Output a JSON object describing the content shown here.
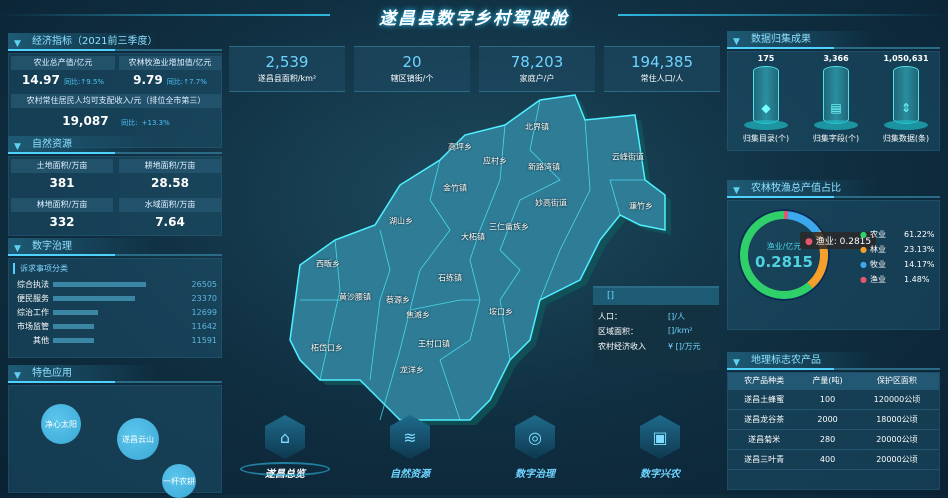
{
  "header": {
    "title": "遂昌县数字乡村驾驶舱"
  },
  "stats": [
    {
      "value": "2,539",
      "label": "遂昌县面积/km²"
    },
    {
      "value": "20",
      "label": "辖区镇街/个"
    },
    {
      "value": "78,203",
      "label": "家庭户/户"
    },
    {
      "value": "194,385",
      "label": "常住人口/人"
    }
  ],
  "economy": {
    "title": "经济指标（2021前三季度）",
    "agri": {
      "label": "农业总产值/亿元",
      "value": "14.97",
      "yoy_label": "同比:",
      "yoy": "↑9.5%"
    },
    "added": {
      "label": "农林牧渔业增加值/亿元",
      "value": "9.79",
      "yoy_label": "同比:",
      "yoy": "↑7.7%"
    },
    "income": {
      "label": "农村常住居民人均可支配收入/元（排位全市第三）",
      "value": "19,087",
      "yoy_label": "同比:",
      "yoy": "+13.3%"
    }
  },
  "nature": {
    "title": "自然资源",
    "items": [
      {
        "label": "土地面积/万亩",
        "value": "381"
      },
      {
        "label": "耕地面积/万亩",
        "value": "28.58"
      },
      {
        "label": "林地面积/万亩",
        "value": "332"
      },
      {
        "label": "水域面积/万亩",
        "value": "7.64"
      }
    ]
  },
  "governance": {
    "title": "数字治理",
    "subtitle": "诉求事项分类",
    "items": [
      {
        "label": "综合执法",
        "value": 26505
      },
      {
        "label": "便民服务",
        "value": 23370
      },
      {
        "label": "综治工作",
        "value": 12699
      },
      {
        "label": "市场监管",
        "value": 11642
      },
      {
        "label": "其他",
        "value": 11591
      }
    ]
  },
  "apps": {
    "title": "特色应用",
    "items": [
      "净心太阳",
      "遂昌云山",
      "一杆农耕"
    ]
  },
  "collection": {
    "title": "数据归集成果",
    "items": [
      {
        "value": "175",
        "label": "归集目录(个)",
        "icon": "layers-icon"
      },
      {
        "value": "3,366",
        "label": "归集字段(个)",
        "icon": "folder-icon"
      },
      {
        "value": "1,050,631",
        "label": "归集数据(条)",
        "icon": "sliders-icon"
      }
    ]
  },
  "share": {
    "title": "农林牧渔总产值占比",
    "center_label": "渔业/亿元",
    "center_value": "0.2815",
    "tooltip": "渔业: 0.2815",
    "items": [
      {
        "name": "农业",
        "pct": "61.22%",
        "value": 61.22,
        "color": "#2fd06a"
      },
      {
        "name": "林业",
        "pct": "23.13%",
        "value": 23.13,
        "color": "#f5a02a"
      },
      {
        "name": "牧业",
        "pct": "14.17%",
        "value": 14.17,
        "color": "#3ea8ee"
      },
      {
        "name": "渔业",
        "pct": "1.48%",
        "value": 1.48,
        "color": "#e8566c"
      }
    ]
  },
  "geo": {
    "title": "地理标志农产品",
    "headers": [
      "农产品种类",
      "产量(吨)",
      "保护区面积"
    ],
    "rows": [
      [
        "遂昌土蜂蜜",
        "100",
        "120000公顷"
      ],
      [
        "遂昌龙谷茶",
        "2000",
        "18000公顷"
      ],
      [
        "遂昌菊米",
        "280",
        "20000公顷"
      ],
      [
        "遂昌三叶青",
        "400",
        "20000公顷"
      ]
    ]
  },
  "map": {
    "towns": [
      "北界镇",
      "高坪乡",
      "应村乡",
      "新路湾镇",
      "云峰街道",
      "金竹镇",
      "妙高街道",
      "濂竹乡",
      "湖山乡",
      "三仁畲族乡",
      "大柘镇",
      "西畈乡",
      "石练镇",
      "黄沙腰镇",
      "蔡源乡",
      "焦滩乡",
      "垵口乡",
      "王村口镇",
      "柘岱口乡",
      "龙洋乡"
    ],
    "info": {
      "title": "[]",
      "rows": [
        {
          "label": "人口：",
          "value": "[]/人"
        },
        {
          "label": "区域面积：",
          "value": "[]/km²"
        },
        {
          "label": "农村经济收入",
          "value": "¥ []/万元"
        }
      ]
    }
  },
  "nav": [
    {
      "label": "遂昌总览",
      "icon": "home-icon"
    },
    {
      "label": "自然资源",
      "icon": "layers-icon"
    },
    {
      "label": "数字治理",
      "icon": "target-icon"
    },
    {
      "label": "数字兴农",
      "icon": "monitor-icon"
    }
  ]
}
